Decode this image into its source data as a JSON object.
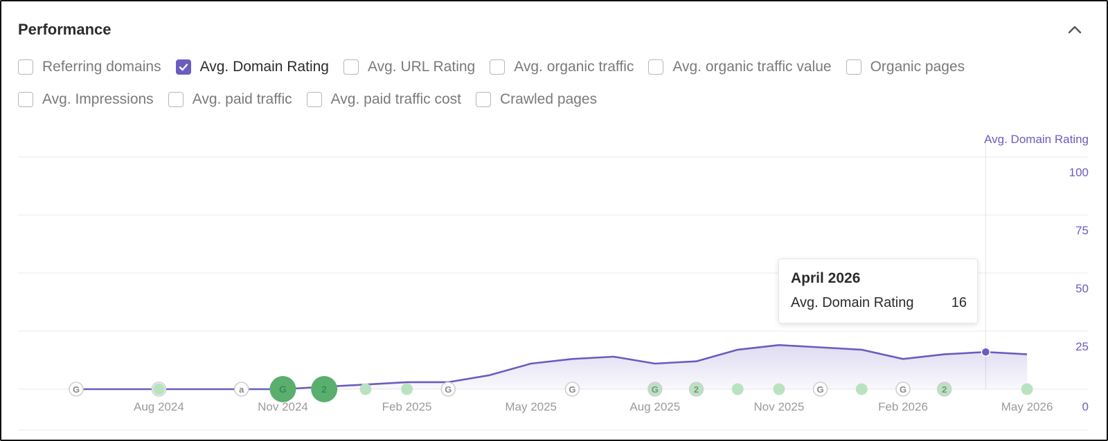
{
  "panel": {
    "title": "Performance"
  },
  "metrics": [
    [
      {
        "label": "Referring domains",
        "checked": false
      },
      {
        "label": "Avg. Domain Rating",
        "checked": true
      },
      {
        "label": "Avg. URL Rating",
        "checked": false
      },
      {
        "label": "Avg. organic traffic",
        "checked": false
      },
      {
        "label": "Avg. organic traffic value",
        "checked": false
      },
      {
        "label": "Organic pages",
        "checked": false
      }
    ],
    [
      {
        "label": "Avg. Impressions",
        "checked": false
      },
      {
        "label": "Avg. paid traffic",
        "checked": false
      },
      {
        "label": "Avg. paid traffic cost",
        "checked": false
      },
      {
        "label": "Crawled pages",
        "checked": false
      }
    ]
  ],
  "colors": {
    "accent": "#6a5cc0",
    "event_green": "#b9e3c0",
    "event_green_big": "#5aae6e",
    "grid": "#e8e8e8",
    "axis_text": "#9a9a9a"
  },
  "chart_data": {
    "type": "area",
    "title": "",
    "ylabel": "Avg. Domain Rating",
    "ylim": [
      0,
      100
    ],
    "y_ticks": [
      0,
      25,
      50,
      75,
      100
    ],
    "x_tick_labels": [
      "Aug 2024",
      "Nov 2024",
      "Feb 2025",
      "May 2025",
      "Aug 2025",
      "Nov 2025",
      "Feb 2026",
      "May 2026"
    ],
    "grid": true,
    "legend": "none",
    "series": [
      {
        "name": "Avg. Domain Rating",
        "x": [
          "2024-06",
          "2024-07",
          "2024-08",
          "2024-09",
          "2024-10",
          "2024-11",
          "2024-12",
          "2025-01",
          "2025-02",
          "2025-03",
          "2025-04",
          "2025-05",
          "2025-06",
          "2025-07",
          "2025-08",
          "2025-09",
          "2025-10",
          "2025-11",
          "2025-12",
          "2026-01",
          "2026-02",
          "2026-03",
          "2026-04",
          "2026-05"
        ],
        "values": [
          0,
          0,
          0,
          0,
          0,
          0,
          1,
          2,
          3,
          3,
          6,
          11,
          13,
          14,
          11,
          12,
          17,
          19,
          18,
          17,
          13,
          15,
          16,
          15
        ]
      }
    ],
    "events": [
      {
        "date": "2024-06",
        "icon": "G",
        "kind": "outline"
      },
      {
        "date": "2024-08",
        "icon": "2",
        "kind": "outline"
      },
      {
        "date": "2024-08",
        "icon": "",
        "kind": "green"
      },
      {
        "date": "2024-10",
        "icon": "a",
        "kind": "outline"
      },
      {
        "date": "2024-11",
        "icon": "G",
        "kind": "big"
      },
      {
        "date": "2024-12",
        "icon": "2",
        "kind": "big"
      },
      {
        "date": "2025-01",
        "icon": "",
        "kind": "green"
      },
      {
        "date": "2025-02",
        "icon": "",
        "kind": "green"
      },
      {
        "date": "2025-03",
        "icon": "G",
        "kind": "outline"
      },
      {
        "date": "2025-06",
        "icon": "G",
        "kind": "outline"
      },
      {
        "date": "2025-08",
        "icon": "G",
        "kind": "green-outline"
      },
      {
        "date": "2025-09",
        "icon": "2",
        "kind": "green-outline"
      },
      {
        "date": "2025-10",
        "icon": "",
        "kind": "green"
      },
      {
        "date": "2025-11",
        "icon": "",
        "kind": "green"
      },
      {
        "date": "2025-12",
        "icon": "G",
        "kind": "outline"
      },
      {
        "date": "2026-01",
        "icon": "",
        "kind": "green"
      },
      {
        "date": "2026-02",
        "icon": "G",
        "kind": "outline"
      },
      {
        "date": "2026-03",
        "icon": "2",
        "kind": "green-outline"
      },
      {
        "date": "2026-05",
        "icon": "",
        "kind": "green"
      }
    ],
    "highlight": {
      "date": "2026-04",
      "value": 16
    }
  },
  "tooltip": {
    "title": "April 2026",
    "label": "Avg. Domain Rating",
    "value": "16"
  }
}
